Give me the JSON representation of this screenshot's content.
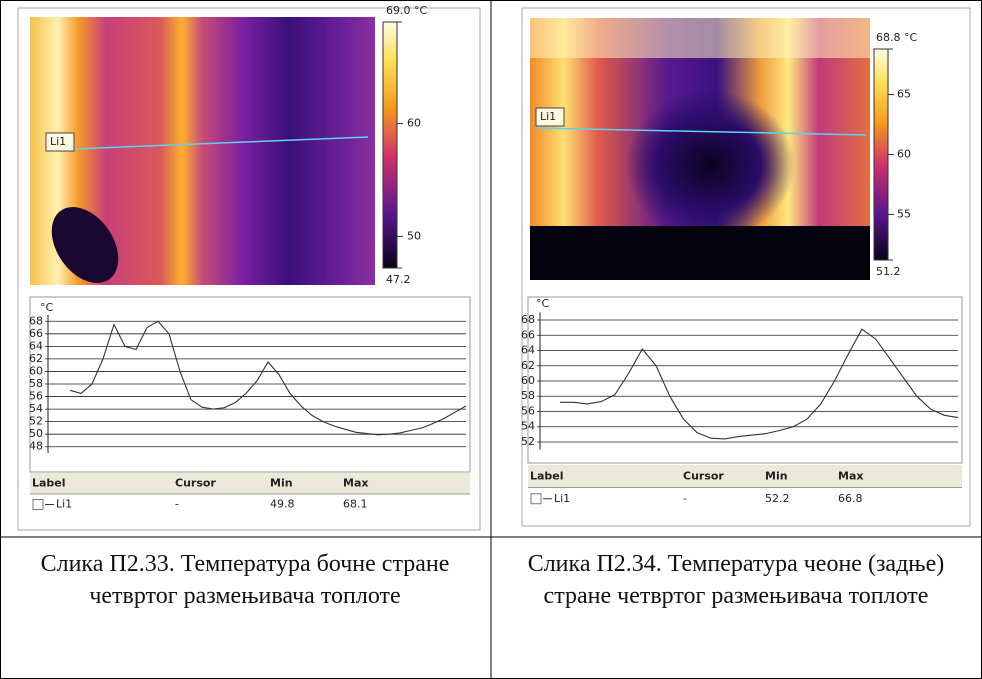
{
  "panels": [
    {
      "image": {
        "line_label": "Li1",
        "colorbar": {
          "max": {
            "value": 69.0,
            "label": "69.0 °C"
          },
          "min": 47.2,
          "ticks": [
            60,
            50
          ]
        }
      },
      "chart": {
        "unit": "°C",
        "ylim": [
          47,
          69
        ],
        "yticks": [
          68,
          66,
          64,
          62,
          60,
          58,
          56,
          54,
          52,
          50,
          48
        ],
        "values": [
          57,
          56.5,
          58,
          62,
          67.5,
          64,
          63.5,
          67,
          68,
          66,
          60,
          55.5,
          54.3,
          54,
          54.2,
          55,
          56.5,
          58.5,
          61.5,
          59.5,
          56.5,
          54.5,
          53,
          52,
          51.3,
          50.8,
          50.3,
          50.1,
          49.9,
          50,
          50.2,
          50.6,
          51,
          51.7,
          52.5,
          53.5,
          54.5
        ]
      },
      "table": {
        "header": [
          "Label",
          "Cursor",
          "Min",
          "Max"
        ],
        "row": [
          "Li1",
          "-",
          49.8,
          68.1
        ]
      },
      "caption": "Слика П2.33. Температура бочне стране четвртог размењивача топлоте"
    },
    {
      "image": {
        "line_label": "Li1",
        "colorbar": {
          "max": {
            "value": 68.8,
            "label": "68.8 °C"
          },
          "min": 51.2,
          "ticks": [
            65,
            60,
            55
          ]
        }
      },
      "chart": {
        "unit": "°C",
        "ylim": [
          51,
          69
        ],
        "yticks": [
          68,
          66,
          64,
          62,
          60,
          58,
          56,
          54,
          52
        ],
        "values": [
          57.2,
          57.2,
          57,
          57.3,
          58.2,
          61,
          64.2,
          62,
          58,
          55,
          53.2,
          52.5,
          52.4,
          52.7,
          52.9,
          53.1,
          53.5,
          54,
          55,
          57,
          60,
          63.5,
          66.8,
          65.5,
          63,
          60.5,
          58,
          56.3,
          55.5,
          55.2
        ]
      },
      "table": {
        "header": [
          "Label",
          "Cursor",
          "Min",
          "Max"
        ],
        "row": [
          "Li1",
          "-",
          52.2,
          66.8
        ]
      },
      "caption": "Слика П2.34. Температура чеоне (задње) стране четвртог размењивача топлоте"
    }
  ]
}
